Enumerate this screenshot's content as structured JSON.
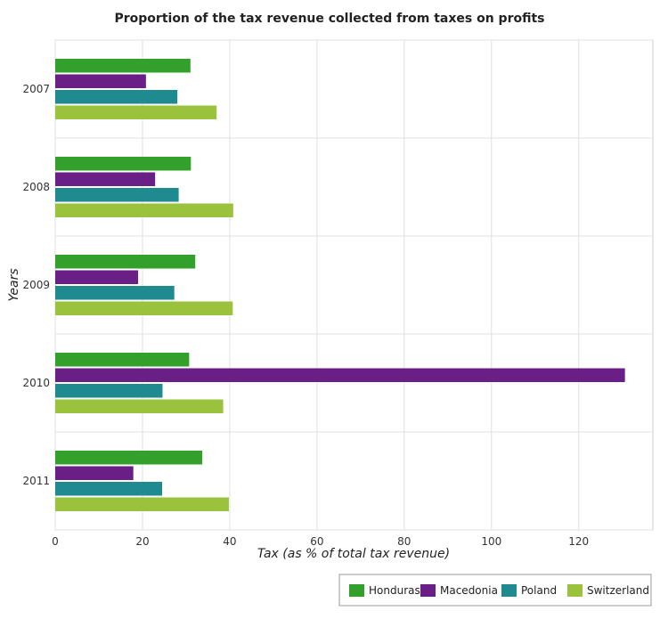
{
  "chart_data": {
    "type": "bar",
    "orientation": "horizontal",
    "title": "Proportion of the tax revenue collected from taxes on profits",
    "xlabel": "Tax (as % of total tax revenue)",
    "ylabel": "Years",
    "categories": [
      "2007",
      "2008",
      "2009",
      "2010",
      "2011"
    ],
    "xlim": [
      0,
      137
    ],
    "xticks": [
      0,
      20,
      40,
      60,
      80,
      100,
      120
    ],
    "grid": true,
    "legend_position": "bottom-right",
    "series": [
      {
        "name": "Honduras",
        "color": "#33a02c",
        "values": [
          31.0,
          31.1,
          32.1,
          30.7,
          33.7
        ]
      },
      {
        "name": "Macedonia",
        "color": "#6a1f86",
        "values": [
          20.8,
          22.9,
          19.0,
          130.6,
          17.9
        ]
      },
      {
        "name": "Poland",
        "color": "#1f8a8f",
        "values": [
          28.0,
          28.3,
          27.3,
          24.6,
          24.5
        ]
      },
      {
        "name": "Switzerland",
        "color": "#9ac23c",
        "values": [
          37.0,
          40.8,
          40.7,
          38.5,
          39.8
        ]
      }
    ]
  }
}
